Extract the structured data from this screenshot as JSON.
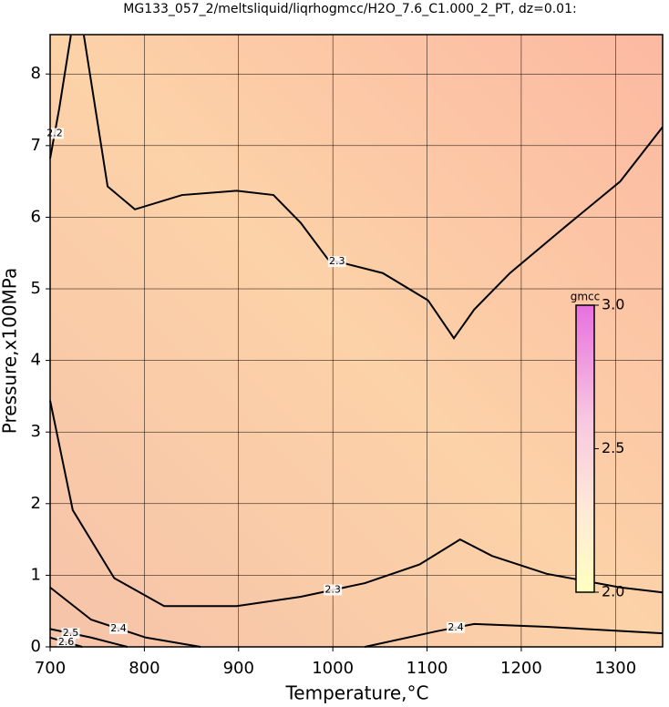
{
  "chart_data": {
    "type": "contour",
    "title": "MG133_057_2/meltsliquid/liqrhogmcc/H2O_7.6_C1.000_2_PT, dz=0.01:",
    "x_label": "Temperature,°C",
    "y_label": "Pressure,x100MPa",
    "xlim": [
      700,
      1350
    ],
    "ylim": [
      0,
      8.55
    ],
    "xticks": [
      700,
      800,
      900,
      1000,
      1100,
      1200,
      1300
    ],
    "yticks": [
      0,
      1,
      2,
      3,
      4,
      5,
      6,
      7,
      8
    ],
    "grid": true,
    "series": [
      {
        "level": 2.3,
        "color": "#000000",
        "x": [
          735.8,
          761,
          790,
          840,
          898,
          937,
          966,
          995,
          1014,
          1053,
          1101,
          1128.5,
          1150,
          1188,
          1246,
          1305,
          1350
        ],
        "y": [
          8.54,
          6.43,
          6.11,
          6.31,
          6.37,
          6.31,
          5.92,
          5.41,
          5.35,
          5.22,
          4.84,
          4.31,
          4.71,
          5.22,
          5.86,
          6.5,
          7.26
        ]
      },
      {
        "level": 2.3,
        "color": "#000000",
        "x": [
          700,
          724,
          768,
          821,
          898,
          966,
          1034,
          1092,
          1135,
          1169,
          1227,
          1305,
          1350
        ],
        "y": [
          3.44,
          1.91,
          0.96,
          0.57,
          0.57,
          0.7,
          0.89,
          1.15,
          1.5,
          1.27,
          1.02,
          0.83,
          0.76
        ]
      },
      {
        "level": 2.4,
        "color": "#000000",
        "x": [
          700,
          743.5,
          801.6,
          859.6
        ],
        "y": [
          0.83,
          0.38,
          0.13,
          0
        ]
      },
      {
        "level": 2.4,
        "color": "#000000",
        "x": [
          1034,
          1111,
          1150,
          1227,
          1350
        ],
        "y": [
          0,
          0.22,
          0.32,
          0.28,
          0.19
        ]
      },
      {
        "level": 2.2,
        "color": "#000000",
        "x": [
          700,
          709.7,
          722
        ],
        "y": [
          6.82,
          7.52,
          8.54
        ]
      },
      {
        "level": 2.5,
        "color": "#000000",
        "x": [
          700,
          743.5,
          782
        ],
        "y": [
          0.25,
          0.13,
          0
        ]
      },
      {
        "level": 2.6,
        "color": "#000000",
        "x": [
          700,
          734
        ],
        "y": [
          0.13,
          0
        ]
      }
    ],
    "colorbar": {
      "label": "gmcc",
      "lim": [
        2,
        3
      ],
      "ticks": [
        {
          "value": 2,
          "label": "2.0"
        },
        {
          "value": 2.5,
          "label": "2.5"
        },
        {
          "value": 3,
          "label": "3.0"
        }
      ]
    }
  }
}
